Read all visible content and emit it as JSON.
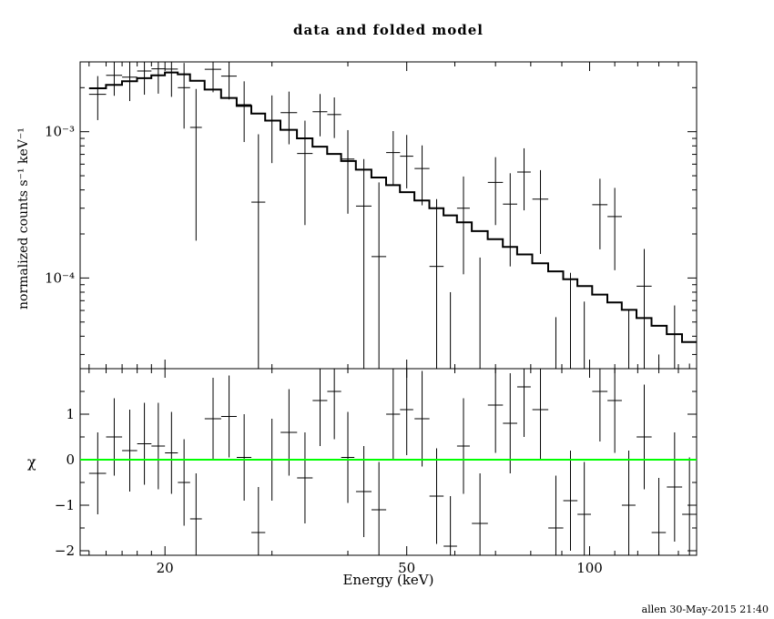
{
  "footer": "allen 30-May-2015 21:40",
  "colors": {
    "frame": "#000000",
    "data": "#000000",
    "model": "#000000",
    "zero_line": "#00ff00",
    "background": "#ffffff"
  },
  "chart_data": {
    "type": "line",
    "title": "data and folded model",
    "xlabel": "Energy (keV)",
    "ylabel_top": "normalized counts s⁻¹ keV⁻¹",
    "ylabel_bottom": "χ",
    "xscale": "log",
    "yscale_top": "log",
    "yscale_bottom": "linear",
    "xlim": [
      14.5,
      150
    ],
    "ylim_top": [
      2.4e-05,
      0.003
    ],
    "ylim_bottom": [
      -2.1,
      2.0
    ],
    "xticks_major": [
      20,
      50,
      100
    ],
    "xtick_labels": [
      "20",
      "50",
      "100"
    ],
    "xticks_minor": [
      15,
      16,
      17,
      18,
      19,
      30,
      40,
      60,
      70,
      80,
      90,
      110,
      120,
      130,
      140,
      150
    ],
    "yticks_top_major": [
      0.001,
      0.0001
    ],
    "ytick_top_labels": [
      "10⁻³",
      "10⁻⁴"
    ],
    "yticks_top_minor": [
      3e-05,
      4e-05,
      5e-05,
      6e-05,
      7e-05,
      8e-05,
      9e-05,
      0.0002,
      0.0003,
      0.0004,
      0.0005,
      0.0006,
      0.0007,
      0.0008,
      0.0009,
      0.002,
      0.003
    ],
    "yticks_bottom_major": [
      1,
      0,
      -1,
      -2
    ],
    "ytick_bottom_labels": [
      "1",
      "0",
      "−1",
      "−2"
    ],
    "yticks_bottom_minor": [
      1.5,
      0.5,
      -0.5,
      -1.5
    ],
    "zero_line_y": 0,
    "legend": null,
    "grid": false,
    "points": [
      {
        "e": 15.5,
        "de": 0.5,
        "y": 0.0018,
        "ye": 0.0006,
        "m": 0.00198,
        "chi": -0.3,
        "ce": 0.9
      },
      {
        "e": 16.5,
        "de": 0.5,
        "y": 0.00243,
        "ye": 0.00067,
        "m": 0.00209,
        "chi": 0.5,
        "ce": 0.85
      },
      {
        "e": 17.5,
        "de": 0.5,
        "y": 0.00236,
        "ye": 0.00074,
        "m": 0.00221,
        "chi": 0.2,
        "ce": 0.9
      },
      {
        "e": 18.5,
        "de": 0.5,
        "y": 0.0026,
        "ye": 0.00081,
        "m": 0.00232,
        "chi": 0.35,
        "ce": 0.9
      },
      {
        "e": 19.5,
        "de": 0.5,
        "y": 0.00269,
        "ye": 0.00087,
        "m": 0.00243,
        "chi": 0.3,
        "ce": 0.95
      },
      {
        "e": 20.5,
        "de": 0.5,
        "y": 0.00268,
        "ye": 0.00095,
        "m": 0.00254,
        "chi": 0.15,
        "ce": 0.9
      },
      {
        "e": 21.5,
        "de": 0.5,
        "y": 0.002,
        "ye": 0.00095,
        "m": 0.00247,
        "chi": -0.5,
        "ce": 0.95
      },
      {
        "e": 22.5,
        "de": 0.5,
        "y": 0.00107,
        "ye": 0.00089,
        "m": 0.00223,
        "chi": -1.3,
        "ce": 1.0
      },
      {
        "e": 24,
        "de": 0.75,
        "y": 0.00267,
        "ye": 0.00081,
        "m": 0.00194,
        "chi": 0.9,
        "ce": 0.9
      },
      {
        "e": 25.5,
        "de": 0.75,
        "y": 0.0024,
        "ye": 0.00074,
        "m": 0.0017,
        "chi": 0.95,
        "ce": 0.9
      },
      {
        "e": 27,
        "de": 0.75,
        "y": 0.00153,
        "ye": 0.00068,
        "m": 0.0015,
        "chi": 0.05,
        "ce": 0.95
      },
      {
        "e": 28.5,
        "de": 0.75,
        "y": 0.00033,
        "ye": 0.00063,
        "m": 0.00133,
        "chi": -1.6,
        "ce": 1.0
      },
      {
        "e": 30,
        "de": 0.75,
        "y": 0.00119,
        "ye": 0.00058,
        "m": 0.00119,
        "chi": 0.0,
        "ce": 0.9
      },
      {
        "e": 32,
        "de": 1.0,
        "y": 0.00135,
        "ye": 0.00053,
        "m": 0.00103,
        "chi": 0.6,
        "ce": 0.95
      },
      {
        "e": 34,
        "de": 1.0,
        "y": 0.00071,
        "ye": 0.00048,
        "m": 0.0009,
        "chi": -0.4,
        "ce": 1.0
      },
      {
        "e": 36,
        "de": 1.0,
        "y": 0.00137,
        "ye": 0.00044,
        "m": 0.00079,
        "chi": 1.3,
        "ce": 1.0
      },
      {
        "e": 38,
        "de": 1.0,
        "y": 0.00131,
        "ye": 0.000405,
        "m": 0.000705,
        "chi": 1.5,
        "ce": 1.05
      },
      {
        "e": 40,
        "de": 1.0,
        "y": 0.00065,
        "ye": 0.000375,
        "m": 0.00063,
        "chi": 0.05,
        "ce": 1.0
      },
      {
        "e": 42.5,
        "de": 1.25,
        "y": 0.00031,
        "ye": 0.00034,
        "m": 0.00055,
        "chi": -0.7,
        "ce": 1.0
      },
      {
        "e": 45,
        "de": 1.25,
        "y": 0.00014,
        "ye": 0.00031,
        "m": 0.000486,
        "chi": -1.1,
        "ce": 1.05
      },
      {
        "e": 47.5,
        "de": 1.25,
        "y": 0.00072,
        "ye": 0.00029,
        "m": 0.000431,
        "chi": 1.0,
        "ce": 1.0
      },
      {
        "e": 50,
        "de": 1.25,
        "y": 0.00068,
        "ye": 0.00027,
        "m": 0.000386,
        "chi": 1.1,
        "ce": 1.0
      },
      {
        "e": 53,
        "de": 1.5,
        "y": 0.00056,
        "ye": 0.000246,
        "m": 0.000339,
        "chi": 0.9,
        "ce": 1.05
      },
      {
        "e": 56,
        "de": 1.5,
        "y": 0.00012,
        "ye": 0.000226,
        "m": 0.0003,
        "chi": -0.8,
        "ce": 1.05
      },
      {
        "e": 59,
        "de": 1.5,
        "y": -0.00013,
        "ye": 0.00021,
        "m": 0.000268,
        "chi": -1.9,
        "ce": 1.1
      },
      {
        "e": 62,
        "de": 1.5,
        "y": 0.0003,
        "ye": 0.000194,
        "m": 0.00024,
        "chi": 0.3,
        "ce": 1.05
      },
      {
        "e": 66,
        "de": 2.0,
        "y": -3.9e-05,
        "ye": 0.000177,
        "m": 0.000209,
        "chi": -1.4,
        "ce": 1.1
      },
      {
        "e": 70,
        "de": 2.0,
        "y": 0.00045,
        "ye": 0.00022,
        "m": 0.000184,
        "chi": 1.2,
        "ce": 1.05
      },
      {
        "e": 74,
        "de": 2.0,
        "y": 0.00032,
        "ye": 0.0002,
        "m": 0.000163,
        "chi": 0.8,
        "ce": 1.1
      },
      {
        "e": 78,
        "de": 2.0,
        "y": 0.00053,
        "ye": 0.00024,
        "m": 0.000145,
        "chi": 1.6,
        "ce": 1.1
      },
      {
        "e": 83,
        "de": 2.5,
        "y": 0.000346,
        "ye": 0.0002,
        "m": 0.000126,
        "chi": 1.1,
        "ce": 1.1
      },
      {
        "e": 88,
        "de": 2.5,
        "y": -6e-05,
        "ye": 0.000114,
        "m": 0.000111,
        "chi": -1.5,
        "ce": 1.15
      },
      {
        "e": 93,
        "de": 2.5,
        "y": 3.5e-06,
        "ye": 0.000105,
        "m": 9.8e-05,
        "chi": -0.9,
        "ce": 1.1
      },
      {
        "e": 98,
        "de": 2.5,
        "y": -2.9e-05,
        "ye": 9.8e-05,
        "m": 8.8e-05,
        "chi": -1.2,
        "ce": 1.15
      },
      {
        "e": 104,
        "de": 3.0,
        "y": 0.000317,
        "ye": 0.00016,
        "m": 7.7e-05,
        "chi": 1.5,
        "ce": 1.1
      },
      {
        "e": 110,
        "de": 3.0,
        "y": 0.000263,
        "ye": 0.00015,
        "m": 6.8e-05,
        "chi": 1.3,
        "ce": 1.15
      },
      {
        "e": 116,
        "de": 3.0,
        "y": -1.5e-05,
        "ye": 7.6e-05,
        "m": 6.06e-05,
        "chi": -1.0,
        "ce": 1.2
      },
      {
        "e": 123,
        "de": 3.5,
        "y": 8.8e-05,
        "ye": 7e-05,
        "m": 5.32e-05,
        "chi": 0.5,
        "ce": 1.15
      },
      {
        "e": 130,
        "de": 3.5,
        "y": -4e-05,
        "ye": 7e-05,
        "m": 4.71e-05,
        "chi": -1.6,
        "ce": 1.2
      },
      {
        "e": 138,
        "de": 4.0,
        "y": 5.9e-06,
        "ye": 5.9e-05,
        "m": 4.13e-05,
        "chi": -0.6,
        "ce": 1.2
      },
      {
        "e": 146,
        "de": 4.0,
        "y": -2.8e-05,
        "ye": 5.4e-05,
        "m": 3.65e-05,
        "chi": -1.2,
        "ce": 1.25
      }
    ]
  }
}
